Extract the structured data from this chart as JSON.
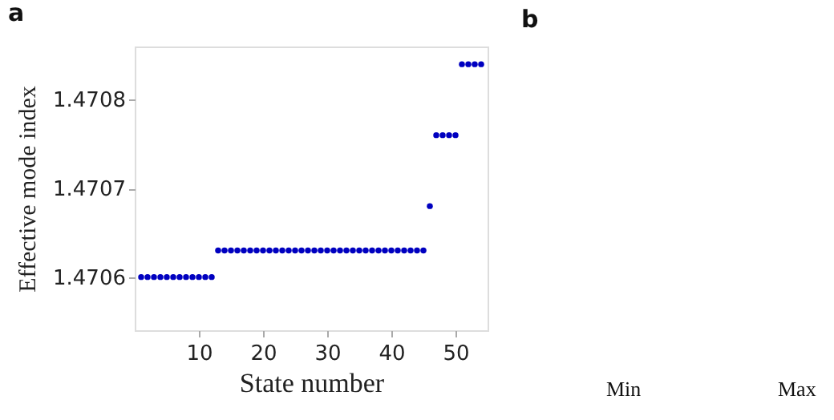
{
  "chart_data": {
    "type": "scatter",
    "xlabel": "State number",
    "ylabel": "Effective mode index",
    "x": [
      1,
      2,
      3,
      4,
      5,
      6,
      7,
      8,
      9,
      10,
      11,
      12,
      13,
      14,
      15,
      16,
      17,
      18,
      19,
      20,
      21,
      22,
      23,
      24,
      25,
      26,
      27,
      28,
      29,
      30,
      31,
      32,
      33,
      34,
      35,
      36,
      37,
      38,
      39,
      40,
      41,
      42,
      43,
      44,
      45,
      46,
      47,
      48,
      49,
      50,
      51,
      52,
      53,
      54
    ],
    "series": [
      {
        "color": "#0000c0",
        "values": [
          1.4706,
          1.4706,
          1.4706,
          1.4706,
          1.4706,
          1.4706,
          1.4706,
          1.4706,
          1.4706,
          1.4706,
          1.4706,
          1.4706,
          1.47063,
          1.47063,
          1.47063,
          1.47063,
          1.47063,
          1.47063,
          1.47063,
          1.47063,
          1.47063,
          1.47063,
          1.47063,
          1.47063,
          1.47063,
          1.47063,
          1.47063,
          1.47063,
          1.47063,
          1.47063,
          1.47063,
          1.47063,
          1.47063,
          1.47063,
          1.47063,
          1.47063,
          1.47063,
          1.47063,
          1.47063,
          1.47063,
          1.47063,
          1.47063,
          1.47063,
          1.47063,
          1.47063,
          1.47068,
          1.47076,
          1.47076,
          1.47076,
          1.47076,
          1.47084,
          1.47084,
          1.47084,
          1.47084
        ]
      }
    ],
    "xlim": [
      0,
      55
    ],
    "ylim": [
      1.47054,
      1.47086
    ],
    "xticks": [
      10,
      20,
      30,
      40,
      50
    ],
    "yticks": [
      1.4706,
      1.4707,
      1.4708
    ],
    "marker": "circle",
    "grid": false,
    "annotations": [
      "a",
      "b",
      "Min",
      "Max"
    ]
  }
}
